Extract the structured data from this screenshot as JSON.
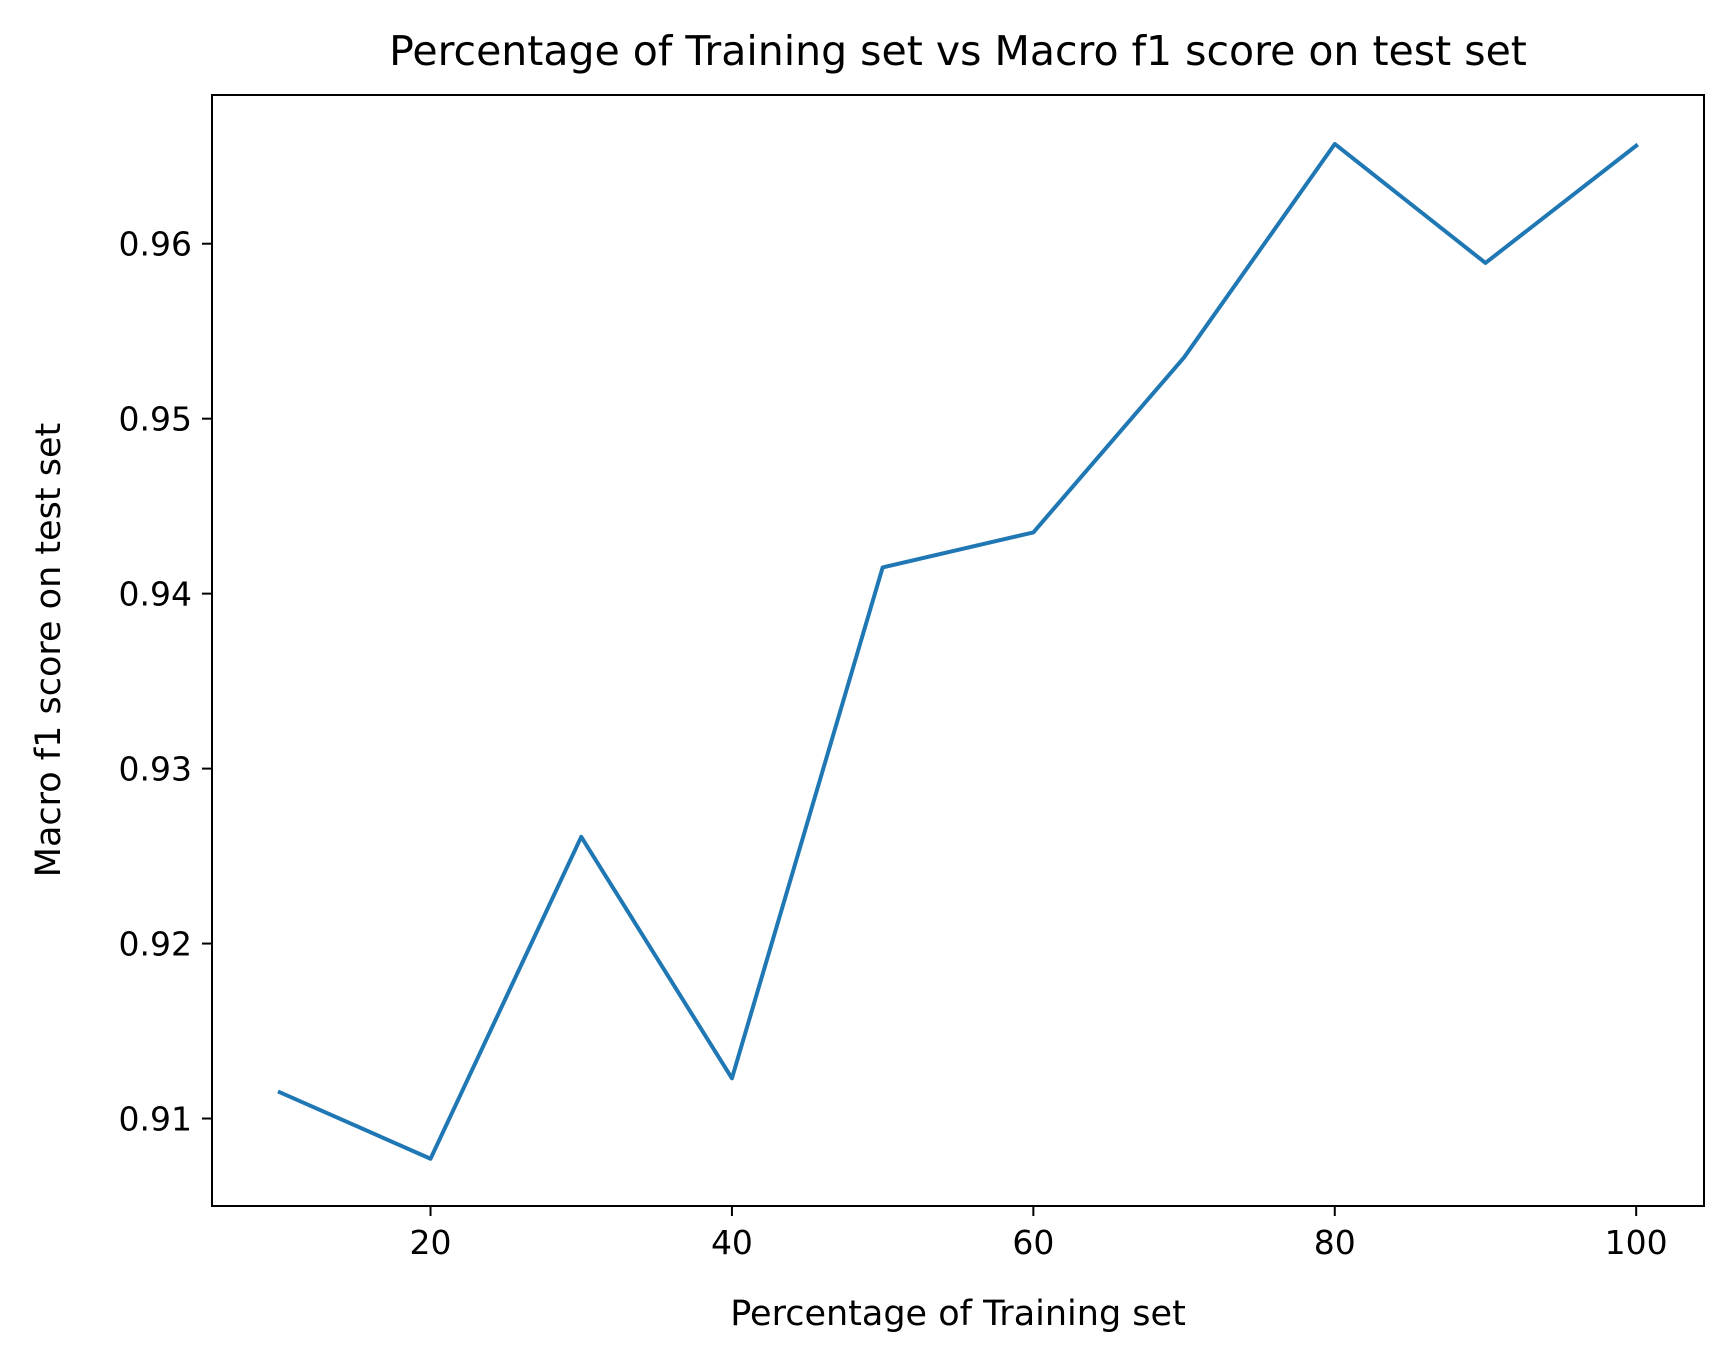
{
  "chart_data": {
    "type": "line",
    "title": "Percentage of Training set vs Macro f1 score on test set",
    "xlabel": "Percentage of Training set",
    "ylabel": "Macro f1 score on test set",
    "xlim": [
      5.5,
      104.5
    ],
    "ylim": [
      0.905,
      0.9685
    ],
    "xticks": [
      20,
      40,
      60,
      80,
      100
    ],
    "xtick_labels": [
      "20",
      "40",
      "60",
      "80",
      "100"
    ],
    "yticks": [
      0.91,
      0.92,
      0.93,
      0.94,
      0.95,
      0.96
    ],
    "ytick_labels": [
      "0.91",
      "0.92",
      "0.93",
      "0.94",
      "0.95",
      "0.96"
    ],
    "grid": false,
    "legend": "none",
    "series": [
      {
        "color": "#1f77b4",
        "x": [
          10,
          20,
          30,
          40,
          50,
          60,
          70,
          80,
          90,
          100
        ],
        "y": [
          0.9115,
          0.9077,
          0.9261,
          0.9123,
          0.9415,
          0.9435,
          0.9535,
          0.9657,
          0.9589,
          0.9656
        ]
      }
    ]
  }
}
